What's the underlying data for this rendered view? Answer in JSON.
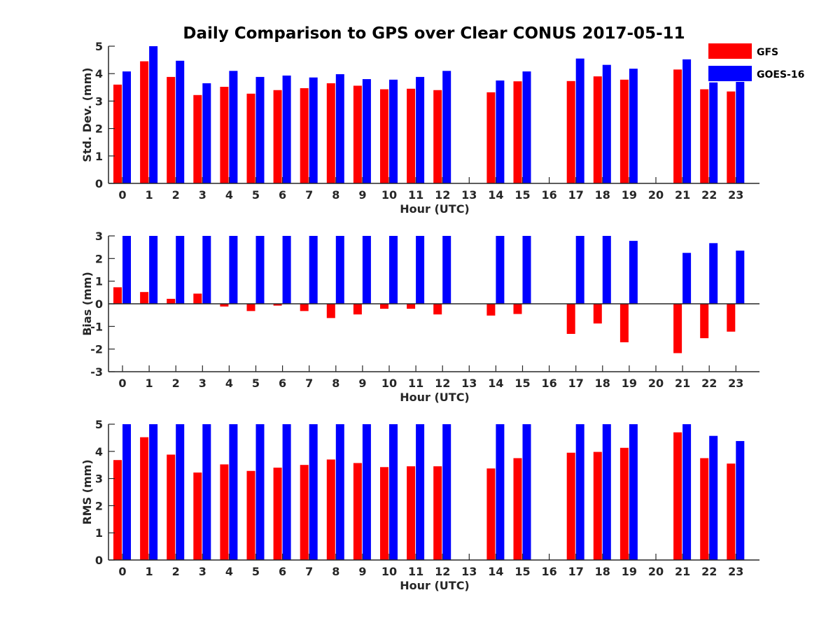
{
  "title": "Daily Comparison to GPS over Clear CONUS 2017-05-11",
  "legend": [
    {
      "name": "GFS",
      "color": "#ff0000"
    },
    {
      "name": "GOES-16",
      "color": "#0000ff"
    }
  ],
  "chart_data": [
    {
      "type": "bar",
      "ylabel": "Std. Dev. (mm)",
      "xlabel": "Hour (UTC)",
      "ylim": [
        0,
        5
      ],
      "yticks": [
        0,
        1,
        2,
        3,
        4,
        5
      ],
      "categories": [
        0,
        1,
        2,
        3,
        4,
        5,
        6,
        7,
        8,
        9,
        10,
        11,
        12,
        13,
        14,
        15,
        16,
        17,
        18,
        19,
        20,
        21,
        22,
        23
      ],
      "series": [
        {
          "name": "GFS",
          "values": [
            3.6,
            4.45,
            3.88,
            3.22,
            3.52,
            3.27,
            3.4,
            3.47,
            3.65,
            3.56,
            3.43,
            3.45,
            3.4,
            null,
            3.32,
            3.72,
            null,
            3.73,
            3.9,
            3.78,
            null,
            4.15,
            3.43,
            3.35
          ]
        },
        {
          "name": "GOES-16",
          "values": [
            4.08,
            5.0,
            4.47,
            3.65,
            4.1,
            3.88,
            3.93,
            3.86,
            3.98,
            3.8,
            3.78,
            3.88,
            4.1,
            null,
            3.75,
            4.08,
            null,
            4.55,
            4.32,
            4.18,
            null,
            4.52,
            3.68,
            3.7
          ]
        }
      ]
    },
    {
      "type": "bar",
      "ylabel": "Bias (mm)",
      "xlabel": "Hour (UTC)",
      "ylim": [
        -3,
        3
      ],
      "yticks": [
        -3,
        -2,
        -1,
        0,
        1,
        2,
        3
      ],
      "categories": [
        0,
        1,
        2,
        3,
        4,
        5,
        6,
        7,
        8,
        9,
        10,
        11,
        12,
        13,
        14,
        15,
        16,
        17,
        18,
        19,
        20,
        21,
        22,
        23
      ],
      "series": [
        {
          "name": "GFS",
          "values": [
            0.73,
            0.52,
            0.22,
            0.45,
            -0.12,
            -0.32,
            -0.08,
            -0.32,
            -0.63,
            -0.47,
            -0.22,
            -0.22,
            -0.47,
            null,
            -0.52,
            -0.45,
            null,
            -1.33,
            -0.87,
            -1.7,
            null,
            -2.18,
            -1.52,
            -1.23
          ]
        },
        {
          "name": "GOES-16",
          "values": [
            3.0,
            3.0,
            3.0,
            3.0,
            3.0,
            3.0,
            3.0,
            3.0,
            3.0,
            3.0,
            3.0,
            3.0,
            3.0,
            null,
            3.0,
            3.0,
            null,
            3.0,
            3.0,
            2.78,
            null,
            2.25,
            2.68,
            2.35
          ]
        }
      ]
    },
    {
      "type": "bar",
      "ylabel": "RMS (mm)",
      "xlabel": "Hour (UTC)",
      "ylim": [
        0,
        5
      ],
      "yticks": [
        0,
        1,
        2,
        3,
        4,
        5
      ],
      "categories": [
        0,
        1,
        2,
        3,
        4,
        5,
        6,
        7,
        8,
        9,
        10,
        11,
        12,
        13,
        14,
        15,
        16,
        17,
        18,
        19,
        20,
        21,
        22,
        23
      ],
      "series": [
        {
          "name": "GFS",
          "values": [
            3.68,
            4.52,
            3.88,
            3.22,
            3.52,
            3.28,
            3.4,
            3.5,
            3.7,
            3.57,
            3.42,
            3.45,
            3.45,
            null,
            3.37,
            3.75,
            null,
            3.95,
            3.98,
            4.13,
            null,
            4.7,
            3.75,
            3.55
          ]
        },
        {
          "name": "GOES-16",
          "values": [
            5.0,
            5.0,
            5.0,
            5.0,
            5.0,
            5.0,
            5.0,
            5.0,
            5.0,
            5.0,
            5.0,
            5.0,
            5.0,
            null,
            5.0,
            5.0,
            null,
            5.0,
            5.0,
            5.0,
            null,
            5.0,
            4.57,
            4.38
          ]
        }
      ]
    }
  ]
}
